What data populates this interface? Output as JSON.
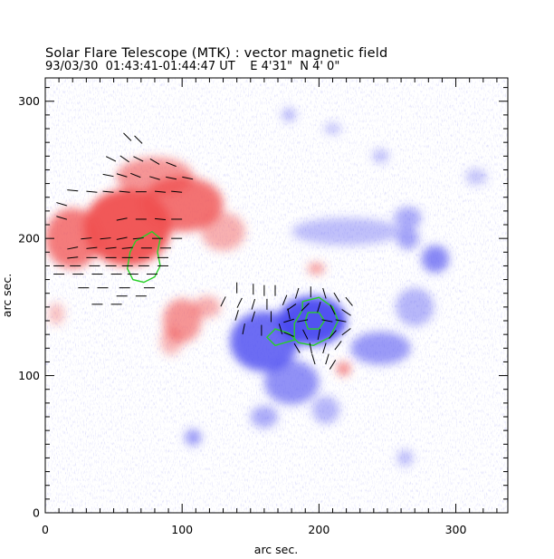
{
  "header": {
    "title": "Solar Flare Telescope (MTK) : vector magnetic field",
    "date": "93/03/30",
    "time": "01:43:41-01:44:47 UT",
    "position": "E 4'31\"  N 4' 0\""
  },
  "chart_data": {
    "type": "heatmap",
    "title": "Solar Flare Telescope (MTK) : vector magnetic field",
    "xlabel": "arc sec.",
    "ylabel": "arc sec.",
    "xlim": [
      0,
      338
    ],
    "ylim": [
      0,
      317
    ],
    "xticks": [
      0,
      100,
      200,
      300
    ],
    "yticks": [
      0,
      100,
      200,
      300
    ],
    "xtick_labels": [
      "0",
      "100",
      "200",
      "300"
    ],
    "ytick_labels": [
      "0",
      "100",
      "200",
      "300"
    ],
    "colors": {
      "positive_polarity": "#f05050",
      "negative_polarity": "#4848f0",
      "contour": "#28d028",
      "vectors": "#000000"
    },
    "positive_regions": [
      {
        "x": 60,
        "y": 208,
        "sx": 32,
        "sy": 28,
        "a": 0.95
      },
      {
        "x": 100,
        "y": 225,
        "sx": 30,
        "sy": 20,
        "a": 0.8
      },
      {
        "x": 80,
        "y": 245,
        "sx": 28,
        "sy": 14,
        "a": 0.6
      },
      {
        "x": 20,
        "y": 200,
        "sx": 20,
        "sy": 22,
        "a": 0.75
      },
      {
        "x": 130,
        "y": 205,
        "sx": 16,
        "sy": 14,
        "a": 0.45
      },
      {
        "x": 100,
        "y": 140,
        "sx": 14,
        "sy": 16,
        "a": 0.6
      },
      {
        "x": 118,
        "y": 150,
        "sx": 10,
        "sy": 8,
        "a": 0.45
      },
      {
        "x": 92,
        "y": 125,
        "sx": 8,
        "sy": 10,
        "a": 0.4
      },
      {
        "x": 8,
        "y": 145,
        "sx": 6,
        "sy": 8,
        "a": 0.35
      },
      {
        "x": 218,
        "y": 105,
        "sx": 5,
        "sy": 5,
        "a": 0.7
      },
      {
        "x": 198,
        "y": 178,
        "sx": 6,
        "sy": 4,
        "a": 0.6
      }
    ],
    "negative_regions": [
      {
        "x": 195,
        "y": 140,
        "sx": 25,
        "sy": 18,
        "a": 0.95
      },
      {
        "x": 160,
        "y": 125,
        "sx": 25,
        "sy": 22,
        "a": 0.8
      },
      {
        "x": 180,
        "y": 95,
        "sx": 20,
        "sy": 16,
        "a": 0.6
      },
      {
        "x": 245,
        "y": 120,
        "sx": 22,
        "sy": 12,
        "a": 0.55
      },
      {
        "x": 285,
        "y": 185,
        "sx": 10,
        "sy": 10,
        "a": 0.65
      },
      {
        "x": 270,
        "y": 150,
        "sx": 14,
        "sy": 14,
        "a": 0.4
      },
      {
        "x": 220,
        "y": 205,
        "sx": 40,
        "sy": 10,
        "a": 0.35
      },
      {
        "x": 265,
        "y": 215,
        "sx": 10,
        "sy": 8,
        "a": 0.45
      },
      {
        "x": 265,
        "y": 200,
        "sx": 8,
        "sy": 8,
        "a": 0.5
      },
      {
        "x": 160,
        "y": 70,
        "sx": 10,
        "sy": 8,
        "a": 0.45
      },
      {
        "x": 205,
        "y": 75,
        "sx": 10,
        "sy": 10,
        "a": 0.4
      },
      {
        "x": 108,
        "y": 55,
        "sx": 6,
        "sy": 6,
        "a": 0.55
      },
      {
        "x": 178,
        "y": 290,
        "sx": 5,
        "sy": 5,
        "a": 0.4
      },
      {
        "x": 210,
        "y": 280,
        "sx": 6,
        "sy": 4,
        "a": 0.35
      },
      {
        "x": 263,
        "y": 40,
        "sx": 6,
        "sy": 6,
        "a": 0.35
      },
      {
        "x": 245,
        "y": 260,
        "sx": 6,
        "sy": 5,
        "a": 0.35
      },
      {
        "x": 315,
        "y": 245,
        "sx": 8,
        "sy": 6,
        "a": 0.3
      }
    ],
    "contours": [
      [
        [
          66,
          198
        ],
        [
          78,
          205
        ],
        [
          84,
          200
        ],
        [
          82,
          190
        ],
        [
          84,
          180
        ],
        [
          80,
          172
        ],
        [
          72,
          168
        ],
        [
          64,
          170
        ],
        [
          60,
          178
        ],
        [
          62,
          190
        ],
        [
          66,
          198
        ]
      ],
      [
        [
          188,
          154
        ],
        [
          200,
          157
        ],
        [
          210,
          150
        ],
        [
          214,
          140
        ],
        [
          208,
          128
        ],
        [
          196,
          122
        ],
        [
          185,
          124
        ],
        [
          178,
          131
        ],
        [
          168,
          134
        ],
        [
          162,
          128
        ],
        [
          168,
          122
        ],
        [
          182,
          126
        ],
        [
          182,
          138
        ],
        [
          188,
          148
        ],
        [
          188,
          154
        ]
      ],
      [
        [
          192,
          146
        ],
        [
          200,
          146
        ],
        [
          204,
          140
        ],
        [
          200,
          134
        ],
        [
          192,
          134
        ],
        [
          190,
          140
        ],
        [
          192,
          146
        ]
      ]
    ],
    "vectors": [
      [
        60,
        274,
        -1,
        1
      ],
      [
        68,
        272,
        -1,
        1
      ],
      [
        48,
        258,
        -1,
        0.5
      ],
      [
        58,
        258,
        -1,
        0.7
      ],
      [
        68,
        258,
        -1,
        0.5
      ],
      [
        80,
        256,
        -1,
        0.6
      ],
      [
        92,
        254,
        -1,
        0.4
      ],
      [
        46,
        246,
        -1,
        0.2
      ],
      [
        56,
        246,
        -1,
        0.3
      ],
      [
        66,
        246,
        -1,
        0.4
      ],
      [
        80,
        244,
        -1,
        0.3
      ],
      [
        92,
        244,
        -1,
        0.2
      ],
      [
        104,
        244,
        -1,
        0.2
      ],
      [
        20,
        235,
        -1,
        0.1
      ],
      [
        34,
        234,
        -1,
        0.1
      ],
      [
        46,
        234,
        -1,
        0.1
      ],
      [
        58,
        234,
        -1,
        0.1
      ],
      [
        70,
        234,
        -1,
        0
      ],
      [
        84,
        234,
        -1,
        0.1
      ],
      [
        96,
        234,
        -1,
        0.1
      ],
      [
        12,
        225,
        -1,
        0.3
      ],
      [
        12,
        215,
        -1,
        0.3
      ],
      [
        56,
        214,
        -1,
        -0.2
      ],
      [
        70,
        214,
        -1,
        0
      ],
      [
        84,
        214,
        -1,
        0.1
      ],
      [
        96,
        214,
        -1,
        0
      ],
      [
        30,
        200,
        -1,
        -0.1
      ],
      [
        44,
        200,
        -1,
        -0.1
      ],
      [
        56,
        200,
        -1,
        -0.2
      ],
      [
        68,
        200,
        -1,
        -0.1
      ],
      [
        82,
        200,
        -1,
        0
      ],
      [
        96,
        200,
        -1,
        0
      ],
      [
        20,
        193,
        -1,
        -0.2
      ],
      [
        34,
        193,
        -1,
        -0.1
      ],
      [
        48,
        193,
        -1,
        -0.1
      ],
      [
        60,
        193,
        -1,
        -0.1
      ],
      [
        74,
        193,
        -1,
        0
      ],
      [
        88,
        193,
        -1,
        0
      ],
      [
        20,
        186,
        -1,
        -0.1
      ],
      [
        34,
        186,
        -1,
        0
      ],
      [
        48,
        186,
        -1,
        0
      ],
      [
        60,
        186,
        -1,
        0
      ],
      [
        72,
        186,
        -1,
        0
      ],
      [
        86,
        186,
        -1,
        0
      ],
      [
        10,
        180,
        -1,
        0
      ],
      [
        22,
        180,
        -1,
        0
      ],
      [
        36,
        180,
        -1,
        0
      ],
      [
        48,
        180,
        -1,
        0
      ],
      [
        60,
        180,
        -1,
        0
      ],
      [
        72,
        180,
        -1,
        0
      ],
      [
        86,
        180,
        -1,
        0
      ],
      [
        10,
        174,
        -1,
        0
      ],
      [
        24,
        174,
        -1,
        0
      ],
      [
        38,
        174,
        -1,
        0
      ],
      [
        52,
        174,
        -1,
        0
      ],
      [
        64,
        174,
        -1,
        0
      ],
      [
        78,
        174,
        -1,
        0
      ],
      [
        28,
        164,
        -1,
        0
      ],
      [
        42,
        164,
        -1,
        0
      ],
      [
        58,
        164,
        -1,
        0
      ],
      [
        76,
        164,
        -1,
        0
      ],
      [
        56,
        158,
        -1,
        0
      ],
      [
        70,
        158,
        -1,
        0
      ],
      [
        38,
        152,
        -1,
        0
      ],
      [
        52,
        152,
        -1,
        0
      ],
      [
        140,
        164,
        0,
        1
      ],
      [
        152,
        163,
        0,
        1
      ],
      [
        160,
        162,
        0,
        1
      ],
      [
        168,
        162,
        0,
        1
      ],
      [
        130,
        154,
        0.5,
        1
      ],
      [
        142,
        153,
        0.5,
        1
      ],
      [
        152,
        152,
        0.3,
        1
      ],
      [
        162,
        152,
        0,
        1
      ],
      [
        175,
        155,
        0.4,
        1
      ],
      [
        140,
        144,
        0.3,
        1
      ],
      [
        152,
        143,
        0.3,
        1
      ],
      [
        165,
        143,
        0,
        1
      ],
      [
        178,
        145,
        -0.2,
        1
      ],
      [
        145,
        134,
        0.2,
        1
      ],
      [
        158,
        133,
        0,
        1
      ],
      [
        172,
        134,
        -0.3,
        1
      ],
      [
        184,
        160,
        0.3,
        1
      ],
      [
        194,
        161,
        0,
        1
      ],
      [
        204,
        160,
        -0.3,
        1
      ],
      [
        213,
        157,
        -0.6,
        1
      ],
      [
        222,
        154,
        -0.8,
        1
      ],
      [
        180,
        150,
        1,
        0.7
      ],
      [
        190,
        150,
        0.8,
        0.8
      ],
      [
        200,
        150,
        0.3,
        1
      ],
      [
        210,
        148,
        -0.5,
        1
      ],
      [
        220,
        146,
        -0.9,
        0.6
      ],
      [
        178,
        140,
        1,
        0.3
      ],
      [
        188,
        140,
        1,
        0.2
      ],
      [
        206,
        140,
        -1,
        0.2
      ],
      [
        216,
        140,
        -1,
        0.2
      ],
      [
        178,
        130,
        1,
        -0.4
      ],
      [
        190,
        130,
        0.5,
        -1
      ],
      [
        200,
        130,
        -0.2,
        -1
      ],
      [
        210,
        130,
        -0.7,
        -0.8
      ],
      [
        220,
        132,
        -0.8,
        -0.6
      ],
      [
        184,
        120,
        0.6,
        -1
      ],
      [
        194,
        120,
        0.2,
        -1
      ],
      [
        204,
        120,
        -0.3,
        -1
      ],
      [
        214,
        122,
        -0.6,
        -0.8
      ],
      [
        196,
        112,
        0.3,
        -1
      ],
      [
        206,
        112,
        -0.3,
        -1
      ],
      [
        210,
        108,
        -0.5,
        -0.8
      ]
    ]
  }
}
